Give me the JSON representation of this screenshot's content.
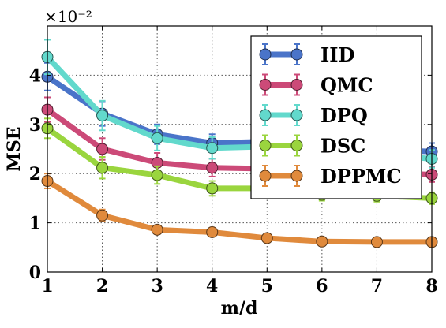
{
  "chart_data": {
    "type": "line",
    "xlabel": "m/d",
    "ylabel": "MSE",
    "y_multiplier": "×10⁻²",
    "x": [
      1,
      2,
      3,
      4,
      5,
      6,
      7,
      8
    ],
    "xlim": [
      1,
      8
    ],
    "ylim": [
      0,
      5
    ],
    "xticks": [
      "1",
      "2",
      "3",
      "4",
      "5",
      "6",
      "7",
      "8"
    ],
    "yticks": [
      "0",
      "1",
      "2",
      "3",
      "4"
    ],
    "grid": true,
    "legend_position": "top-right",
    "series": [
      {
        "name": "IID",
        "color": "#4a74c9",
        "values": [
          3.97,
          3.22,
          2.8,
          2.62,
          2.65,
          2.5,
          2.48,
          2.45
        ],
        "errors": [
          0.28,
          0.25,
          0.2,
          0.18,
          0.18,
          0.17,
          0.17,
          0.17
        ]
      },
      {
        "name": "QMC",
        "color": "#cc4a78",
        "values": [
          3.3,
          2.5,
          2.22,
          2.12,
          2.1,
          2.05,
          2.02,
          1.98
        ],
        "errors": [
          0.25,
          0.22,
          0.2,
          0.18,
          0.17,
          0.16,
          0.15,
          0.15
        ]
      },
      {
        "name": "DPQ",
        "color": "#62d9cc",
        "values": [
          4.37,
          3.18,
          2.72,
          2.52,
          2.55,
          2.45,
          2.4,
          2.3
        ],
        "errors": [
          0.35,
          0.3,
          0.25,
          0.22,
          0.2,
          0.2,
          0.18,
          0.18
        ]
      },
      {
        "name": "DSC",
        "color": "#9ad53e",
        "values": [
          2.92,
          2.12,
          1.97,
          1.7,
          1.7,
          1.57,
          1.55,
          1.5
        ],
        "errors": [
          0.2,
          0.22,
          0.18,
          0.15,
          0.15,
          0.12,
          0.12,
          0.12
        ]
      },
      {
        "name": "DPPMC",
        "color": "#e08a3c",
        "values": [
          1.85,
          1.15,
          0.86,
          0.81,
          0.69,
          0.62,
          0.61,
          0.61
        ],
        "errors": [
          0.15,
          0.12,
          0.08,
          0.06,
          0.05,
          0.05,
          0.04,
          0.04
        ]
      }
    ]
  }
}
